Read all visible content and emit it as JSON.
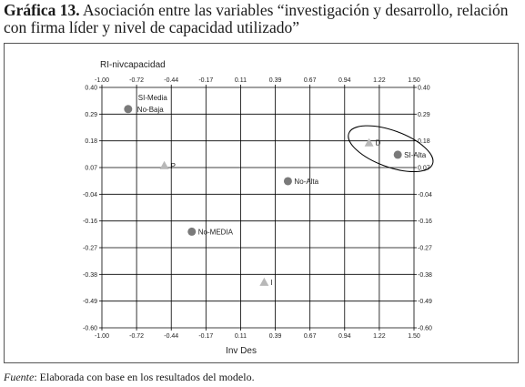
{
  "header": {
    "title_bold": "Gráfica 13.",
    "title_rest": " Asociación entre las variables “investigación y desarrollo, relación con firma líder y nivel de capacidad utilizado”"
  },
  "footer": {
    "source_label": "Fuente",
    "source_text": ": Elaborada con base en los resultados del modelo."
  },
  "chart_data": {
    "type": "scatter",
    "title": "",
    "xlabel": "Inv Des",
    "ylabel": "RI-nivcapacidad",
    "xlim": [
      -1.0,
      1.5
    ],
    "ylim": [
      -0.6,
      0.4
    ],
    "x_ticks": [
      "-1.00",
      "-0.72",
      "-0.44",
      "-0.17",
      "0.11",
      "0.39",
      "0.67",
      "0.94",
      "1.22",
      "1.50"
    ],
    "y_ticks": [
      "0.40",
      "0.29",
      "0.18",
      "0.07",
      "-0.04",
      "-0.16",
      "-0.27",
      "-0.38",
      "-0.49",
      "-0.60"
    ],
    "grid": true,
    "points": [
      {
        "label": "SI-Media",
        "x": -0.79,
        "y": 0.31,
        "marker": "circle",
        "color": "#7a7a7a"
      },
      {
        "label": "No-Baja",
        "x": -0.79,
        "y": 0.31,
        "marker": "circle",
        "color": "#7a7a7a"
      },
      {
        "label": "P",
        "x": -0.5,
        "y": 0.075,
        "marker": "triangle",
        "color": "#b8b8b8"
      },
      {
        "label": "No-Alta",
        "x": 0.49,
        "y": 0.01,
        "marker": "circle",
        "color": "#7a7a7a"
      },
      {
        "label": "No-MEDIA",
        "x": -0.28,
        "y": -0.2,
        "marker": "circle",
        "color": "#7a7a7a"
      },
      {
        "label": "I",
        "x": 0.3,
        "y": -0.41,
        "marker": "triangle",
        "color": "#b8b8b8"
      },
      {
        "label": "D",
        "x": 1.14,
        "y": 0.17,
        "marker": "triangle",
        "color": "#b8b8b8"
      },
      {
        "label": "SI-Alta",
        "x": 1.37,
        "y": 0.12,
        "marker": "circle",
        "color": "#7a7a7a"
      }
    ],
    "annotation": {
      "type": "ellipse",
      "encloses": [
        "D",
        "SI-Alta"
      ]
    }
  }
}
